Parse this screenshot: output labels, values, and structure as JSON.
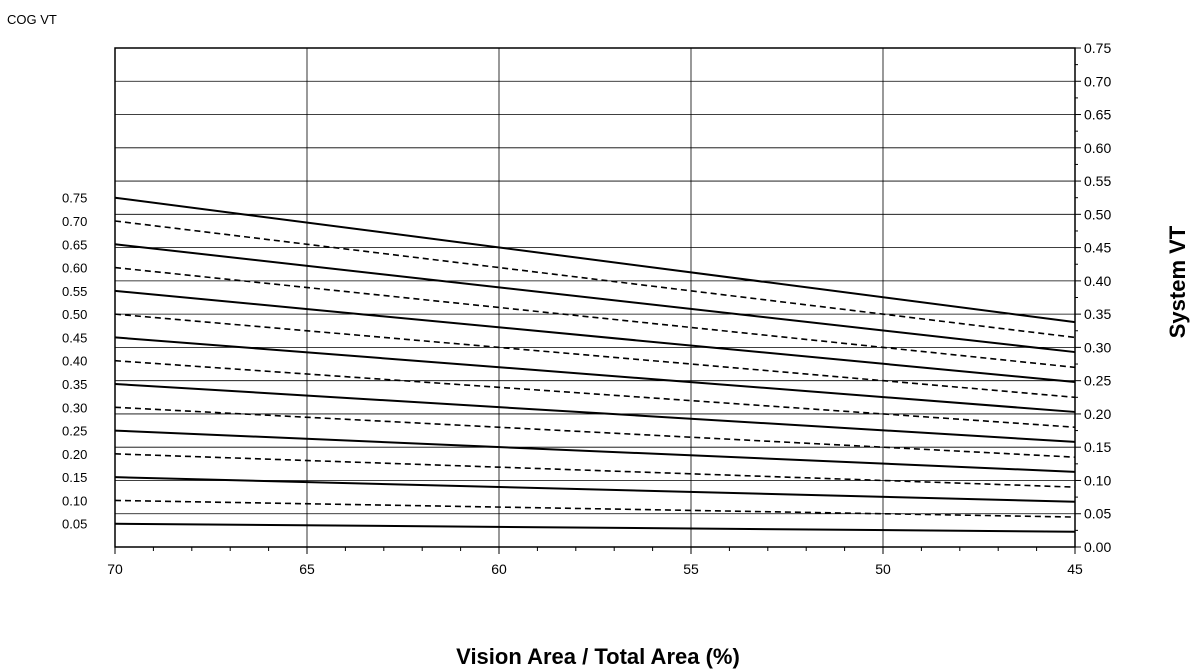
{
  "chart_data": {
    "type": "line",
    "title": "",
    "xlabel": "Vision Area / Total Area (%)",
    "ylabel": "System VT",
    "left_axis_label": "COG VT",
    "x_ticks": [
      70,
      65,
      60,
      55,
      50,
      45
    ],
    "xlim": [
      70,
      45
    ],
    "ylim": [
      0,
      0.75
    ],
    "y_ticks_right": [
      "0.00",
      "0.05",
      "0.10",
      "0.15",
      "0.20",
      "0.25",
      "0.30",
      "0.35",
      "0.40",
      "0.45",
      "0.50",
      "0.55",
      "0.60",
      "0.65",
      "0.70",
      "0.75"
    ],
    "y_ticks_left": [
      "0.05",
      "0.10",
      "0.15",
      "0.20",
      "0.25",
      "0.30",
      "0.35",
      "0.40",
      "0.45",
      "0.50",
      "0.55",
      "0.60",
      "0.65",
      "0.70",
      "0.75"
    ],
    "grid": true,
    "series": [
      {
        "cog_vt": 0.05,
        "style": "solid",
        "x": [
          70,
          45
        ],
        "y": [
          0.035,
          0.023
        ]
      },
      {
        "cog_vt": 0.1,
        "style": "dashed",
        "x": [
          70,
          45
        ],
        "y": [
          0.07,
          0.045
        ]
      },
      {
        "cog_vt": 0.15,
        "style": "solid",
        "x": [
          70,
          45
        ],
        "y": [
          0.105,
          0.068
        ]
      },
      {
        "cog_vt": 0.2,
        "style": "dashed",
        "x": [
          70,
          45
        ],
        "y": [
          0.14,
          0.09
        ]
      },
      {
        "cog_vt": 0.25,
        "style": "solid",
        "x": [
          70,
          45
        ],
        "y": [
          0.175,
          0.113
        ]
      },
      {
        "cog_vt": 0.3,
        "style": "dashed",
        "x": [
          70,
          45
        ],
        "y": [
          0.21,
          0.135
        ]
      },
      {
        "cog_vt": 0.35,
        "style": "solid",
        "x": [
          70,
          45
        ],
        "y": [
          0.245,
          0.158
        ]
      },
      {
        "cog_vt": 0.4,
        "style": "dashed",
        "x": [
          70,
          45
        ],
        "y": [
          0.28,
          0.18
        ]
      },
      {
        "cog_vt": 0.45,
        "style": "solid",
        "x": [
          70,
          45
        ],
        "y": [
          0.315,
          0.203
        ]
      },
      {
        "cog_vt": 0.5,
        "style": "dashed",
        "x": [
          70,
          45
        ],
        "y": [
          0.35,
          0.225
        ]
      },
      {
        "cog_vt": 0.55,
        "style": "solid",
        "x": [
          70,
          45
        ],
        "y": [
          0.385,
          0.248
        ]
      },
      {
        "cog_vt": 0.6,
        "style": "dashed",
        "x": [
          70,
          45
        ],
        "y": [
          0.42,
          0.27
        ]
      },
      {
        "cog_vt": 0.65,
        "style": "solid",
        "x": [
          70,
          45
        ],
        "y": [
          0.455,
          0.293
        ]
      },
      {
        "cog_vt": 0.7,
        "style": "dashed",
        "x": [
          70,
          45
        ],
        "y": [
          0.49,
          0.315
        ]
      },
      {
        "cog_vt": 0.75,
        "style": "solid",
        "x": [
          70,
          45
        ],
        "y": [
          0.525,
          0.338
        ]
      }
    ]
  }
}
